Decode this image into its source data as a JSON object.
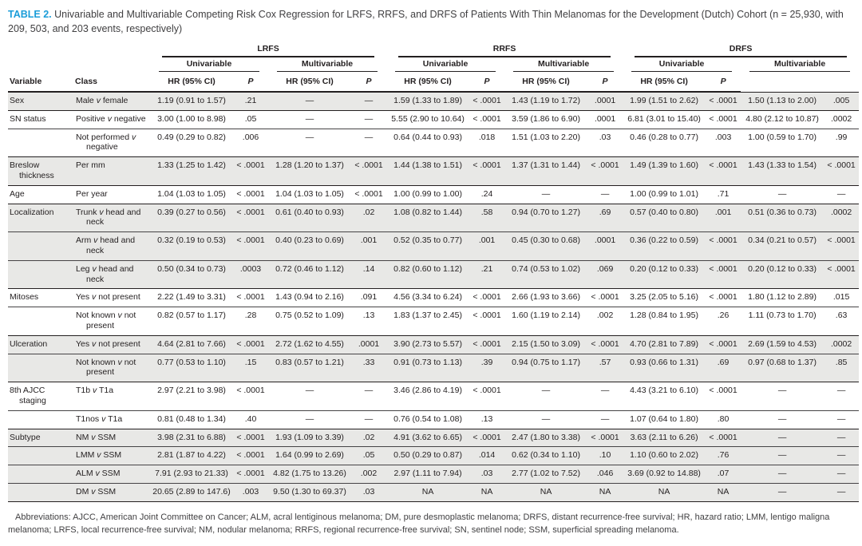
{
  "title": {
    "label": "TABLE 2.",
    "text": "Univariable and Multivariable Competing Risk Cox Regression for LRFS, RRFS, and DRFS of Patients With Thin Melanomas for the Development (Dutch) Cohort (n = 25,930, with 209, 503, and 203 events, respectively)"
  },
  "colors": {
    "accent_blue": "#1b9dd9",
    "stripe_gray": "#e8e8e6",
    "rule_black": "#231f20",
    "text_gray": "#414042"
  },
  "header": {
    "variable": "Variable",
    "class": "Class",
    "outcomes": [
      "LRFS",
      "RRFS",
      "DRFS"
    ],
    "models": [
      "Univariable",
      "Multivariable"
    ],
    "hr": "HR (95% CI)",
    "p": "P"
  },
  "rows": [
    {
      "variable": "Sex",
      "class": "Male v female",
      "shaded": true,
      "group_start": true,
      "values": [
        "1.19 (0.91 to 1.57)",
        ".21",
        "—",
        "—",
        "1.59 (1.33 to 1.89)",
        "< .0001",
        "1.43 (1.19 to 1.72)",
        ".0001",
        "1.99 (1.51 to 2.62)",
        "< .0001",
        "1.50 (1.13 to 2.00)",
        ".005"
      ]
    },
    {
      "variable": "SN status",
      "class": "Positive v negative",
      "shaded": false,
      "group_start": true,
      "values": [
        "3.00 (1.00 to 8.98)",
        ".05",
        "—",
        "—",
        "5.55 (2.90 to 10.64)",
        "< .0001",
        "3.59 (1.86 to 6.90)",
        ".0001",
        "6.81 (3.01 to 15.40)",
        "< .0001",
        "4.80 (2.12 to 10.87)",
        ".0002"
      ]
    },
    {
      "variable": "",
      "class": "Not performed v negative",
      "shaded": false,
      "group_start": false,
      "values": [
        "0.49 (0.29 to 0.82)",
        ".006",
        "—",
        "—",
        "0.64 (0.44 to 0.93)",
        ".018",
        "1.51 (1.03 to 2.20)",
        ".03",
        "0.46 (0.28 to 0.77)",
        ".003",
        "1.00 (0.59 to 1.70)",
        ".99"
      ]
    },
    {
      "variable": "Breslow thickness",
      "class": "Per mm",
      "shaded": true,
      "group_start": true,
      "values": [
        "1.33 (1.25 to 1.42)",
        "< .0001",
        "1.28 (1.20 to 1.37)",
        "< .0001",
        "1.44 (1.38 to 1.51)",
        "< .0001",
        "1.37 (1.31 to 1.44)",
        "< .0001",
        "1.49 (1.39 to 1.60)",
        "< .0001",
        "1.43 (1.33 to 1.54)",
        "< .0001"
      ]
    },
    {
      "variable": "Age",
      "class": "Per year",
      "shaded": false,
      "group_start": true,
      "values": [
        "1.04 (1.03 to 1.05)",
        "< .0001",
        "1.04 (1.03 to 1.05)",
        "< .0001",
        "1.00 (0.99 to 1.00)",
        ".24",
        "—",
        "—",
        "1.00 (0.99 to 1.01)",
        ".71",
        "—",
        "—"
      ]
    },
    {
      "variable": "Localization",
      "class": "Trunk v head and neck",
      "shaded": true,
      "group_start": true,
      "values": [
        "0.39 (0.27 to 0.56)",
        "< .0001",
        "0.61 (0.40 to 0.93)",
        ".02",
        "1.08 (0.82 to 1.44)",
        ".58",
        "0.94 (0.70 to 1.27)",
        ".69",
        "0.57 (0.40 to 0.80)",
        ".001",
        "0.51 (0.36 to 0.73)",
        ".0002"
      ]
    },
    {
      "variable": "",
      "class": "Arm v head and neck",
      "shaded": true,
      "group_start": false,
      "values": [
        "0.32 (0.19 to 0.53)",
        "< .0001",
        "0.40 (0.23 to 0.69)",
        ".001",
        "0.52 (0.35 to 0.77)",
        ".001",
        "0.45 (0.30 to 0.68)",
        ".0001",
        "0.36 (0.22 to 0.59)",
        "< .0001",
        "0.34 (0.21 to 0.57)",
        "< .0001"
      ]
    },
    {
      "variable": "",
      "class": "Leg v head and neck",
      "shaded": true,
      "group_start": false,
      "values": [
        "0.50 (0.34 to 0.73)",
        ".0003",
        "0.72 (0.46 to 1.12)",
        ".14",
        "0.82 (0.60 to 1.12)",
        ".21",
        "0.74 (0.53 to 1.02)",
        ".069",
        "0.20 (0.12 to 0.33)",
        "< .0001",
        "0.20 (0.12 to 0.33)",
        "< .0001"
      ]
    },
    {
      "variable": "Mitoses",
      "class": "Yes v not present",
      "shaded": false,
      "group_start": true,
      "values": [
        "2.22 (1.49 to 3.31)",
        "< .0001",
        "1.43 (0.94 to 2.16)",
        ".091",
        "4.56 (3.34 to 6.24)",
        "< .0001",
        "2.66 (1.93 to 3.66)",
        "< .0001",
        "3.25 (2.05 to 5.16)",
        "< .0001",
        "1.80 (1.12 to 2.89)",
        ".015"
      ]
    },
    {
      "variable": "",
      "class": "Not known v not present",
      "shaded": false,
      "group_start": false,
      "values": [
        "0.82 (0.57 to 1.17)",
        ".28",
        "0.75 (0.52 to 1.09)",
        ".13",
        "1.83 (1.37 to 2.45)",
        "< .0001",
        "1.60 (1.19 to 2.14)",
        ".002",
        "1.28 (0.84 to 1.95)",
        ".26",
        "1.11 (0.73 to 1.70)",
        ".63"
      ]
    },
    {
      "variable": "Ulceration",
      "class": "Yes v not present",
      "shaded": true,
      "group_start": true,
      "values": [
        "4.64 (2.81 to 7.66)",
        "< .0001",
        "2.72 (1.62 to 4.55)",
        ".0001",
        "3.90 (2.73 to 5.57)",
        "< .0001",
        "2.15 (1.50 to 3.09)",
        "< .0001",
        "4.70 (2.81 to 7.89)",
        "< .0001",
        "2.69 (1.59 to 4.53)",
        ".0002"
      ]
    },
    {
      "variable": "",
      "class": "Not known v not present",
      "shaded": true,
      "group_start": false,
      "values": [
        "0.77 (0.53 to 1.10)",
        ".15",
        "0.83 (0.57 to 1.21)",
        ".33",
        "0.91 (0.73 to 1.13)",
        ".39",
        "0.94 (0.75 to 1.17)",
        ".57",
        "0.93 (0.66 to 1.31)",
        ".69",
        "0.97 (0.68 to 1.37)",
        ".85"
      ]
    },
    {
      "variable": "8th AJCC staging",
      "class": "T1b v T1a",
      "shaded": false,
      "group_start": true,
      "values": [
        "2.97 (2.21 to 3.98)",
        "< .0001",
        "—",
        "—",
        "3.46 (2.86 to 4.19)",
        "< .0001",
        "—",
        "—",
        "4.43 (3.21 to 6.10)",
        "< .0001",
        "—",
        "—"
      ]
    },
    {
      "variable": "",
      "class": "T1nos v T1a",
      "shaded": false,
      "group_start": false,
      "values": [
        "0.81 (0.48 to 1.34)",
        ".40",
        "—",
        "—",
        "0.76 (0.54 to 1.08)",
        ".13",
        "—",
        "—",
        "1.07 (0.64 to 1.80)",
        ".80",
        "—",
        "—"
      ]
    },
    {
      "variable": "Subtype",
      "class": "NM v SSM",
      "shaded": true,
      "group_start": true,
      "values": [
        "3.98 (2.31 to 6.88)",
        "< .0001",
        "1.93 (1.09 to 3.39)",
        ".02",
        "4.91 (3.62 to 6.65)",
        "< .0001",
        "2.47 (1.80 to 3.38)",
        "< .0001",
        "3.63 (2.11 to 6.26)",
        "< .0001",
        "—",
        "—"
      ]
    },
    {
      "variable": "",
      "class": "LMM v SSM",
      "shaded": true,
      "group_start": false,
      "values": [
        "2.81 (1.87 to 4.22)",
        "< .0001",
        "1.64 (0.99 to 2.69)",
        ".05",
        "0.50 (0.29 to 0.87)",
        ".014",
        "0.62 (0.34 to 1.10)",
        ".10",
        "1.10 (0.60 to 2.02)",
        ".76",
        "—",
        "—"
      ]
    },
    {
      "variable": "",
      "class": "ALM v SSM",
      "shaded": true,
      "group_start": false,
      "values": [
        "7.91 (2.93 to 21.33)",
        "< .0001",
        "4.82 (1.75 to 13.26)",
        ".002",
        "2.97 (1.11 to 7.94)",
        ".03",
        "2.77 (1.02 to 7.52)",
        ".046",
        "3.69 (0.92 to 14.88)",
        ".07",
        "—",
        "—"
      ]
    },
    {
      "variable": "",
      "class": "DM v SSM",
      "shaded": true,
      "group_start": false,
      "values": [
        "20.65 (2.89 to 147.6)",
        ".003",
        "9.50 (1.30 to 69.37)",
        ".03",
        "NA",
        "NA",
        "NA",
        "NA",
        "NA",
        "NA",
        "—",
        "—"
      ]
    }
  ],
  "footnote": "Abbreviations: AJCC, American Joint Committee on Cancer; ALM, acral lentiginous melanoma; DM, pure desmoplastic melanoma; DRFS, distant recurrence-free survival; HR, hazard ratio; LMM, lentigo maligna melanoma; LRFS, local recurrence-free survival; NM, nodular melanoma; RRFS, regional recurrence-free survival; SN, sentinel node; SSM, superficial spreading melanoma."
}
